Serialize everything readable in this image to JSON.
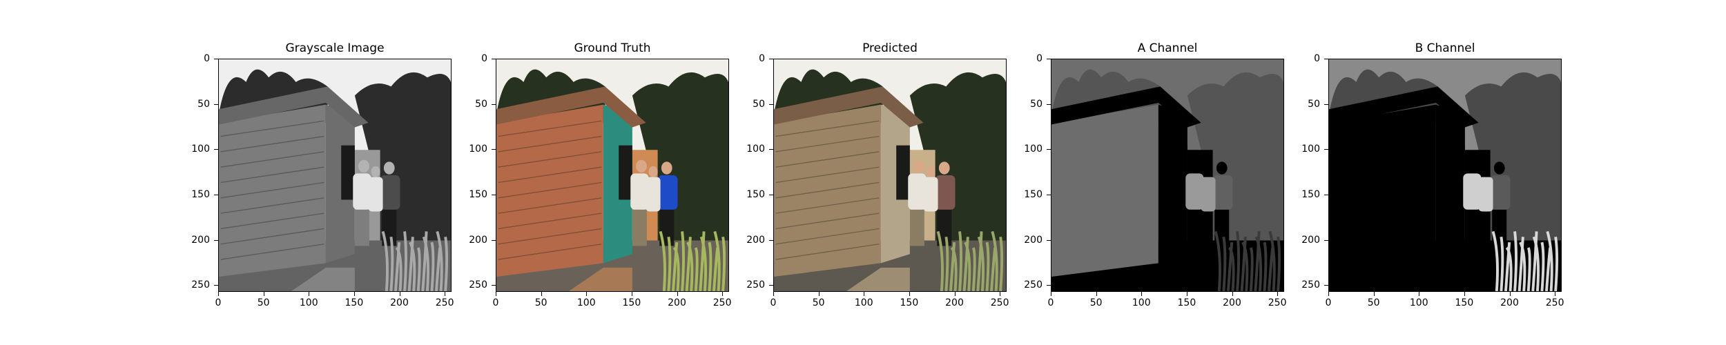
{
  "figure": {
    "panels": [
      {
        "title": "Grayscale Image",
        "mode": "gray"
      },
      {
        "title": "Ground Truth",
        "mode": "color"
      },
      {
        "title": "Predicted",
        "mode": "pred"
      },
      {
        "title": "A Channel",
        "mode": "a"
      },
      {
        "title": "B Channel",
        "mode": "b"
      }
    ],
    "y_ticks": [
      "0",
      "50",
      "100",
      "150",
      "200",
      "250"
    ],
    "x_ticks": [
      "0",
      "50",
      "100",
      "150",
      "200",
      "250"
    ],
    "colors": {
      "sky": "#f1efe9",
      "trees": "#27311f",
      "roof": "#8a5d43",
      "shed_wood": "#b46a48",
      "shed_green": "#2c8c7e",
      "door": "#d08a53",
      "ground": "#6a6258",
      "grass": "#a6b95e",
      "shirt_blue": "#1e4cc9"
    }
  }
}
